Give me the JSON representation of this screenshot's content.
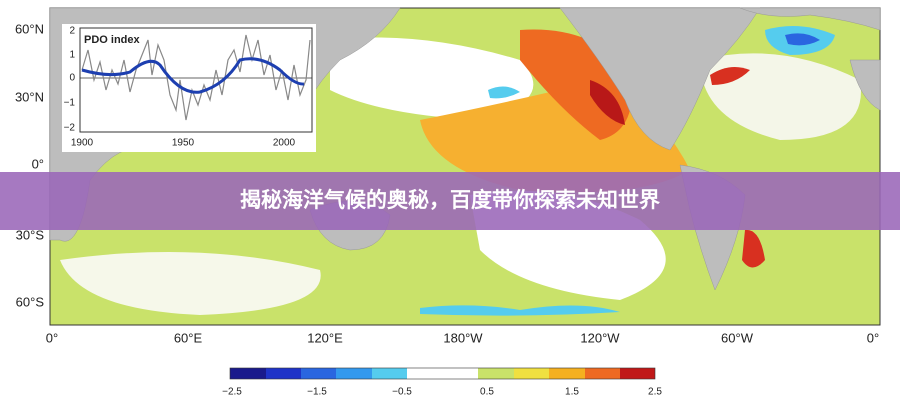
{
  "banner": {
    "title": "揭秘海洋气候的奥秘，百度带你探索未知世界"
  },
  "map": {
    "lat_labels": [
      "60°N",
      "30°N",
      "0°",
      "30°S",
      "60°S"
    ],
    "lon_labels": [
      "0°",
      "60°E",
      "120°E",
      "180°W",
      "120°W",
      "60°W",
      "0°"
    ]
  },
  "inset": {
    "title": "PDO index",
    "yticks": [
      "2",
      "1",
      "0",
      "−1",
      "−2"
    ],
    "xticks": [
      "1900",
      "1950",
      "2000"
    ]
  },
  "colorbar": {
    "ticks": [
      "−2.5",
      "−1.5",
      "−0.5",
      "0.5",
      "1.5",
      "2.5"
    ]
  }
}
